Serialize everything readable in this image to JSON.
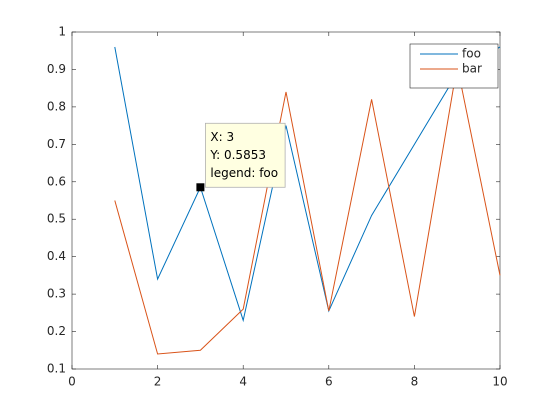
{
  "chart_data": {
    "type": "line",
    "x": [
      1,
      2,
      3,
      4,
      5,
      6,
      7,
      8,
      9,
      10
    ],
    "series": [
      {
        "name": "foo",
        "color": "#0072bd",
        "values": [
          0.96,
          0.34,
          0.5853,
          0.23,
          0.75,
          0.255,
          0.51,
          0.7,
          0.89,
          0.96
        ]
      },
      {
        "name": "bar",
        "color": "#d95319",
        "values": [
          0.55,
          0.14,
          0.15,
          0.26,
          0.84,
          0.255,
          0.82,
          0.24,
          0.91,
          0.35
        ]
      }
    ],
    "xlim": [
      0,
      10
    ],
    "ylim": [
      0.1,
      1
    ],
    "xticks": [
      0,
      2,
      4,
      6,
      8,
      10
    ],
    "yticks": [
      0.1,
      0.2,
      0.3,
      0.4,
      0.5,
      0.6,
      0.7,
      0.8,
      0.9,
      1
    ],
    "grid": false,
    "legend": "top-right",
    "datatip": {
      "x": 3,
      "y": 0.5853,
      "lines": [
        "X: 3",
        "Y: 0.5853",
        "legend: foo"
      ]
    }
  }
}
